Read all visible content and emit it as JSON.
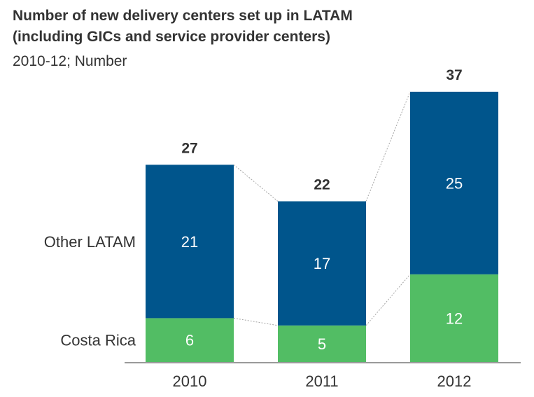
{
  "chart_data": {
    "type": "bar",
    "stacked": true,
    "title_lines": [
      "Number of new delivery centers set up in LATAM",
      "(including GICs and service provider centers)"
    ],
    "subtitle": "2010-12; Number",
    "categories": [
      "2010",
      "2011",
      "2012"
    ],
    "series": [
      {
        "name": "Costa Rica",
        "values": [
          6,
          5,
          12
        ],
        "color": "#52bd64",
        "label_color": "#ffffff"
      },
      {
        "name": "Other LATAM",
        "values": [
          21,
          17,
          25
        ],
        "color": "#00558c",
        "label_color": "#ffffff"
      }
    ],
    "totals": [
      27,
      22,
      37
    ],
    "ylim": [
      0,
      37
    ],
    "connector_lines": true,
    "legend": "left-inline",
    "grid": false
  }
}
